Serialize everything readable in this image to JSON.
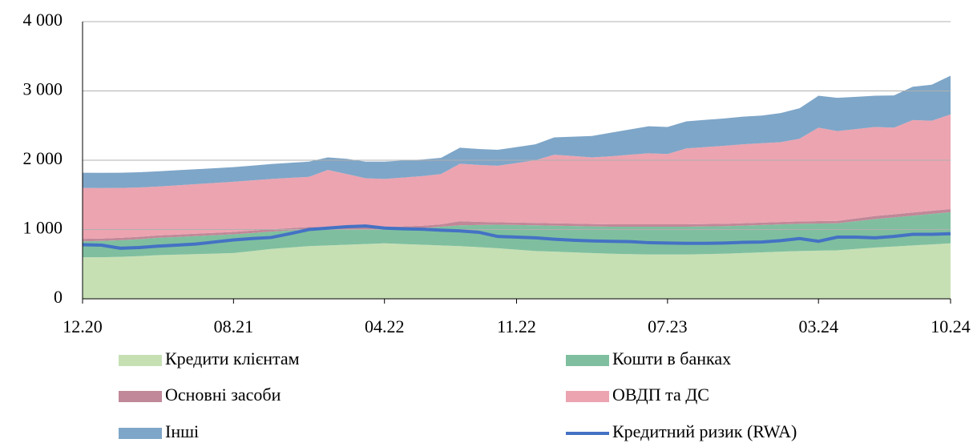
{
  "chart_data": {
    "type": "stacked-area",
    "categories": [
      "12.20",
      null,
      null,
      null,
      null,
      null,
      null,
      null,
      "08.21",
      null,
      null,
      null,
      null,
      null,
      null,
      null,
      "04.22",
      null,
      null,
      null,
      null,
      null,
      null,
      "11.22",
      null,
      null,
      null,
      null,
      null,
      null,
      null,
      "07.23",
      null,
      null,
      null,
      null,
      null,
      null,
      null,
      "03.24",
      null,
      null,
      null,
      null,
      null,
      null,
      "10.24"
    ],
    "ylim": [
      0,
      4000
    ],
    "yticks": [
      0,
      {
        "value": 1000,
        "label": "1 000"
      },
      {
        "value": 2000,
        "label": "2 000"
      },
      {
        "value": 3000,
        "label": "3 000"
      },
      {
        "value": 4000,
        "label": "4 000"
      }
    ],
    "grid": true,
    "series": [
      {
        "name": "Кредити клієнтам",
        "color": "#c6e0b4",
        "values": [
          600,
          600,
          605,
          615,
          630,
          637,
          645,
          652,
          660,
          690,
          720,
          740,
          760,
          770,
          780,
          790,
          800,
          790,
          780,
          770,
          760,
          745,
          730,
          710,
          690,
          680,
          670,
          660,
          650,
          645,
          640,
          640,
          640,
          645,
          650,
          660,
          670,
          680,
          690,
          695,
          700,
          720,
          740,
          755,
          770,
          785,
          800
        ]
      },
      {
        "name": "Кошти в банках",
        "color": "#7fbf9f",
        "values": [
          230,
          235,
          240,
          245,
          250,
          255,
          260,
          265,
          270,
          260,
          250,
          245,
          240,
          230,
          220,
          210,
          200,
          220,
          240,
          270,
          300,
          320,
          340,
          355,
          370,
          375,
          380,
          385,
          390,
          395,
          400,
          400,
          400,
          400,
          398,
          396,
          395,
          393,
          392,
          391,
          390,
          400,
          410,
          420,
          430,
          440,
          450
        ]
      },
      {
        "name": "Основні засоби",
        "color": "#c08898",
        "values": [
          35,
          35,
          35,
          35,
          35,
          35,
          35,
          35,
          35,
          35,
          35,
          35,
          35,
          35,
          35,
          35,
          35,
          35,
          35,
          35,
          60,
          45,
          35,
          35,
          35,
          35,
          35,
          35,
          35,
          35,
          35,
          35,
          35,
          35,
          35,
          35,
          35,
          35,
          35,
          35,
          35,
          40,
          45,
          45,
          45,
          45,
          45
        ]
      },
      {
        "name": "ОВДП та ДС",
        "color": "#eca4b0",
        "values": [
          735,
          728,
          720,
          712,
          705,
          710,
          715,
          720,
          725,
          725,
          725,
          725,
          725,
          825,
          765,
          705,
          695,
          705,
          715,
          725,
          830,
          822,
          815,
          860,
          905,
          990,
          975,
          960,
          982,
          1004,
          1025,
          1015,
          1095,
          1110,
          1125,
          1139,
          1145,
          1152,
          1193,
          1349,
          1295,
          1290,
          1285,
          1250,
          1335,
          1300,
          1365
        ]
      },
      {
        "name": "Інші",
        "color": "#7ea6c8",
        "values": [
          220,
          220,
          220,
          220,
          220,
          218,
          215,
          212,
          210,
          212,
          215,
          218,
          220,
          180,
          220,
          240,
          250,
          245,
          240,
          235,
          230,
          230,
          230,
          230,
          230,
          250,
          280,
          310,
          340,
          365,
          390,
          390,
          390,
          392,
          395,
          398,
          400,
          420,
          440,
          460,
          480,
          465,
          450,
          465,
          480,
          520,
          560
        ]
      },
      {
        "name": "Кредитний ризик (RWA)",
        "color": "#4472c4",
        "type": "line",
        "values": [
          780,
          775,
          730,
          740,
          760,
          775,
          790,
          820,
          850,
          870,
          885,
          940,
          1000,
          1020,
          1040,
          1050,
          1020,
          1010,
          1005,
          990,
          980,
          960,
          900,
          890,
          880,
          860,
          845,
          835,
          830,
          825,
          810,
          805,
          800,
          800,
          805,
          815,
          820,
          840,
          870,
          830,
          890,
          890,
          880,
          900,
          930,
          930,
          940
        ]
      }
    ]
  }
}
